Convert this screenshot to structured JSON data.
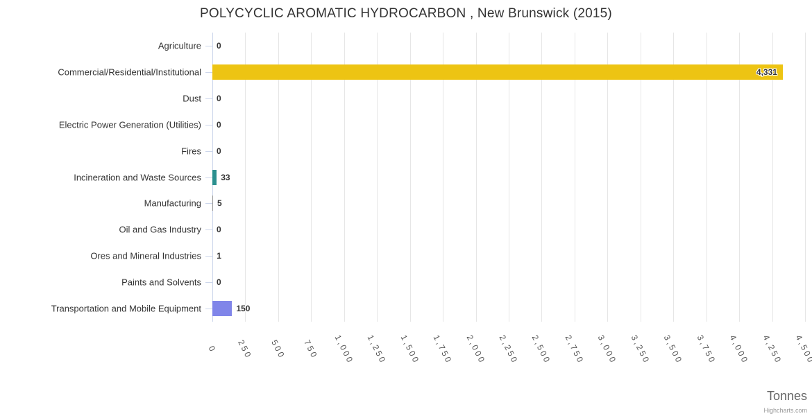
{
  "chart_data": {
    "type": "bar",
    "title": "POLYCYCLIC AROMATIC HYDROCARBON , New Brunswick (2015)",
    "xlabel": "Tonnes",
    "ylabel": "",
    "xlim": [
      0,
      4500
    ],
    "grid": true,
    "legend": false,
    "categories": [
      "Agriculture",
      "Commercial/Residential/Institutional",
      "Dust",
      "Electric Power Generation (Utilities)",
      "Fires",
      "Incineration and Waste Sources",
      "Manufacturing",
      "Oil and Gas Industry",
      "Ores and Mineral Industries",
      "Paints and Solvents",
      "Transportation and Mobile Equipment"
    ],
    "values": [
      0,
      4331,
      0,
      0,
      0,
      33,
      5,
      0,
      1,
      0,
      150
    ],
    "value_labels": [
      "0",
      "4,331",
      "0",
      "0",
      "0",
      "33",
      "5",
      "0",
      "1",
      "0",
      "150"
    ],
    "bar_colors": [
      null,
      "#edc413",
      null,
      null,
      null,
      "#2b908f",
      "#999999",
      null,
      "#999999",
      null,
      "#8085e9"
    ],
    "axis_ticks": [
      0,
      250,
      500,
      750,
      1000,
      1250,
      1500,
      1750,
      2000,
      2250,
      2500,
      2750,
      3000,
      3250,
      3500,
      3750,
      4000,
      4250,
      4500
    ],
    "axis_tick_labels": [
      "0",
      "250",
      "500",
      "750",
      "1,000",
      "1,250",
      "1,500",
      "1,750",
      "2,000",
      "2,250",
      "2,500",
      "2,750",
      "3,000",
      "3,250",
      "3,500",
      "3,750",
      "4,000",
      "4,250",
      "4,500"
    ]
  },
  "colors": {
    "grid": "#e6e6e6",
    "axis_line": "#ccd6eb",
    "title_text": "#333333",
    "category_text": "#333333",
    "tick_text": "#555555",
    "axis_title_text": "#666666",
    "credits_text": "#999999"
  },
  "credits": "Highcharts.com"
}
